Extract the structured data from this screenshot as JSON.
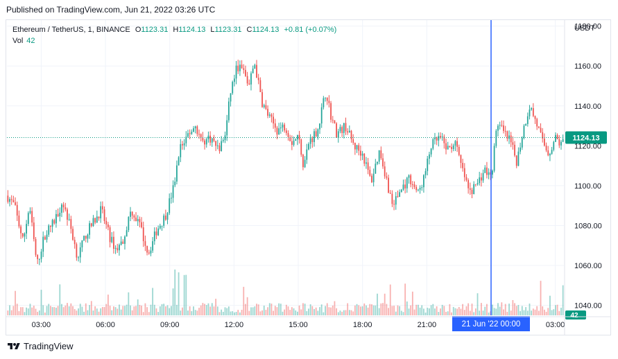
{
  "published": "Published on TradingView.com, Jun 21, 2022 03:26 UTC",
  "legend": {
    "symbol": "Ethereum / TetherUS, 1, BINANCE",
    "o_label": "O",
    "o_value": "1123.31",
    "h_label": "H",
    "h_value": "1124.13",
    "l_label": "L",
    "l_value": "1123.31",
    "c_label": "C",
    "c_value": "1124.13",
    "change": "+0.81 (+0.07%)",
    "vol_label": "Vol",
    "vol_value": "42"
  },
  "footer": {
    "brand": "TradingView",
    "logo_icon": "tradingview-logo-icon"
  },
  "colors": {
    "up": "#26a69a",
    "down": "#ef5350",
    "up_text": "#089981",
    "price_badge": "#089981",
    "crosshair": "#2962ff",
    "time_badge": "#2962ff"
  },
  "chart_data": {
    "type": "candlestick",
    "currency_label": "USDT",
    "y_ticks": [
      "1040.00",
      "1060.00",
      "1080.00",
      "1100.00",
      "1120.00",
      "1140.00",
      "1160.00",
      "1180.00"
    ],
    "ylim": [
      1035,
      1183
    ],
    "x_ticks": [
      "03:00",
      "06:00",
      "09:00",
      "12:00",
      "15:00",
      "18:00",
      "21:00",
      "00:00",
      "03:00"
    ],
    "xlim_hours_label": "Jun 20 01:25 – Jun 21 03:26 UTC",
    "last_price": "1124.13",
    "last_volume": "42",
    "crosshair_time_label": "21 Jun '22   00:00",
    "grid": true,
    "price_path": [
      [
        0.0,
        1095
      ],
      [
        0.35,
        1090
      ],
      [
        0.75,
        1072
      ],
      [
        1.05,
        1090
      ],
      [
        1.4,
        1060
      ],
      [
        1.75,
        1075
      ],
      [
        2.2,
        1082
      ],
      [
        2.6,
        1092
      ],
      [
        3.0,
        1078
      ],
      [
        3.3,
        1064
      ],
      [
        3.7,
        1076
      ],
      [
        4.05,
        1082
      ],
      [
        4.4,
        1088
      ],
      [
        4.8,
        1074
      ],
      [
        5.1,
        1068
      ],
      [
        5.4,
        1072
      ],
      [
        5.8,
        1088
      ],
      [
        6.2,
        1080
      ],
      [
        6.6,
        1066
      ],
      [
        7.0,
        1078
      ],
      [
        7.4,
        1085
      ],
      [
        7.8,
        1100
      ],
      [
        8.05,
        1118
      ],
      [
        8.4,
        1125
      ],
      [
        8.8,
        1130
      ],
      [
        9.1,
        1122
      ],
      [
        9.5,
        1124
      ],
      [
        9.9,
        1118
      ],
      [
        10.2,
        1126
      ],
      [
        10.45,
        1148
      ],
      [
        10.75,
        1160
      ],
      [
        11.0,
        1158
      ],
      [
        11.3,
        1150
      ],
      [
        11.55,
        1162
      ],
      [
        11.9,
        1142
      ],
      [
        12.2,
        1135
      ],
      [
        12.6,
        1128
      ],
      [
        13.0,
        1130
      ],
      [
        13.3,
        1122
      ],
      [
        13.6,
        1125
      ],
      [
        13.85,
        1110
      ],
      [
        14.1,
        1122
      ],
      [
        14.5,
        1128
      ],
      [
        14.9,
        1148
      ],
      [
        15.1,
        1136
      ],
      [
        15.4,
        1126
      ],
      [
        15.8,
        1130
      ],
      [
        16.2,
        1120
      ],
      [
        16.6,
        1116
      ],
      [
        17.0,
        1102
      ],
      [
        17.4,
        1118
      ],
      [
        17.7,
        1104
      ],
      [
        18.0,
        1090
      ],
      [
        18.4,
        1098
      ],
      [
        18.8,
        1104
      ],
      [
        19.2,
        1096
      ],
      [
        19.5,
        1105
      ],
      [
        19.8,
        1120
      ],
      [
        20.2,
        1124
      ],
      [
        20.6,
        1118
      ],
      [
        20.9,
        1122
      ],
      [
        21.2,
        1110
      ],
      [
        21.6,
        1096
      ],
      [
        22.0,
        1102
      ],
      [
        22.3,
        1108
      ],
      [
        22.6,
        1104
      ],
      [
        22.9,
        1132
      ],
      [
        23.2,
        1126
      ],
      [
        23.5,
        1122
      ],
      [
        23.8,
        1112
      ],
      [
        24.1,
        1128
      ],
      [
        24.4,
        1140
      ],
      [
        24.7,
        1132
      ],
      [
        25.0,
        1122
      ],
      [
        25.3,
        1116
      ],
      [
        25.6,
        1124
      ],
      [
        25.9,
        1120
      ],
      [
        26.0,
        1124
      ]
    ]
  }
}
